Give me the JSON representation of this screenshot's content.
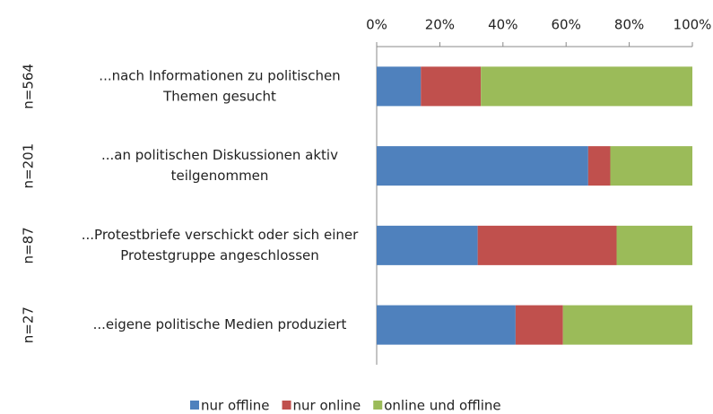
{
  "chart_data": {
    "type": "bar_stacked_horizontal",
    "categories": [
      [
        "...nach Informationen zu politischen",
        "Themen gesucht"
      ],
      [
        "...an politischen Diskussionen aktiv",
        "teilgenommen"
      ],
      [
        "...Protestbriefe verschickt oder sich einer",
        "Protestgruppe angeschlossen"
      ],
      [
        "...eigene politische Medien produziert"
      ]
    ],
    "n_labels": [
      "n=564",
      "n=201",
      "n=87",
      "n=27"
    ],
    "series": [
      {
        "name": "nur offline",
        "color": "#4f81bd",
        "values": [
          14,
          67,
          32,
          44
        ]
      },
      {
        "name": "nur online",
        "color": "#c0504d",
        "values": [
          19,
          7,
          44,
          15
        ]
      },
      {
        "name": "online und offline",
        "color": "#9bbb59",
        "values": [
          67,
          26,
          24,
          41
        ]
      }
    ],
    "xlim": [
      0,
      100
    ],
    "xticks": [
      {
        "value": 0,
        "label": "0%"
      },
      {
        "value": 20,
        "label": "20%"
      },
      {
        "value": 40,
        "label": "40%"
      },
      {
        "value": 60,
        "label": "60%"
      },
      {
        "value": 80,
        "label": "80%"
      },
      {
        "value": 100,
        "label": "100%"
      }
    ],
    "legend": "bottom"
  }
}
